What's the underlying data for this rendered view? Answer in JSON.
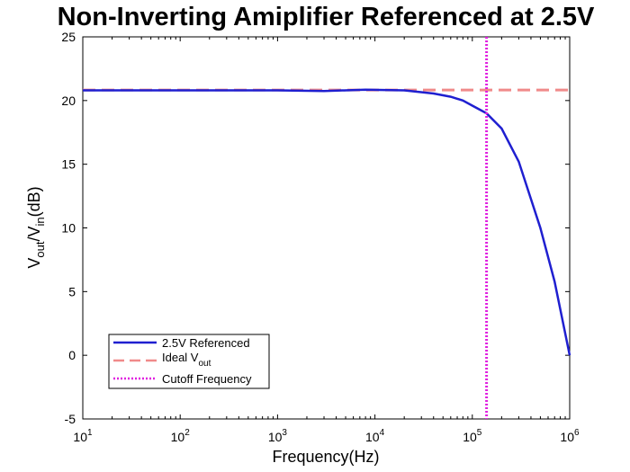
{
  "chart_data": {
    "type": "line",
    "title": "Non-Inverting Amiplifier Referenced at 2.5V",
    "xlabel": "Frequency(Hz)",
    "ylabel": {
      "main": "V",
      "sub1": "out",
      "slash": "/V",
      "sub2": "in",
      "unit": "(dB)"
    },
    "xscale": "log",
    "xlim": [
      10,
      1000000
    ],
    "ylim": [
      -5,
      25
    ],
    "yticks": [
      -5,
      0,
      5,
      10,
      15,
      20,
      25
    ],
    "xticks": [
      {
        "value": 10,
        "base": "10",
        "exp": "1"
      },
      {
        "value": 100,
        "base": "10",
        "exp": "2"
      },
      {
        "value": 1000,
        "base": "10",
        "exp": "3"
      },
      {
        "value": 10000,
        "base": "10",
        "exp": "4"
      },
      {
        "value": 100000,
        "base": "10",
        "exp": "5"
      },
      {
        "value": 1000000,
        "base": "10",
        "exp": "6"
      }
    ],
    "grid": false,
    "legend_position": "bottom-left",
    "series": [
      {
        "name": "2.5V Referenced",
        "style": "solid",
        "color": "#1f1fd0",
        "points": [
          [
            10,
            20.8
          ],
          [
            100,
            20.8
          ],
          [
            1000,
            20.8
          ],
          [
            3000,
            20.75
          ],
          [
            5000,
            20.8
          ],
          [
            8000,
            20.85
          ],
          [
            20000,
            20.8
          ],
          [
            40000,
            20.55
          ],
          [
            60000,
            20.3
          ],
          [
            80000,
            20.0
          ],
          [
            100000,
            19.6
          ],
          [
            140000,
            19.0
          ],
          [
            200000,
            17.8
          ],
          [
            300000,
            15.2
          ],
          [
            500000,
            10.0
          ],
          [
            700000,
            5.8
          ],
          [
            1000000,
            0.0
          ]
        ]
      },
      {
        "name": "Ideal V",
        "name_sub": "out",
        "style": "dashed",
        "color": "#f08a8a",
        "points": [
          [
            10,
            20.83
          ],
          [
            1000000,
            20.83
          ]
        ]
      },
      {
        "name": "Cutoff Frequency",
        "style": "dotted",
        "color": "#e020e0",
        "vertical_x": 140000
      }
    ]
  }
}
